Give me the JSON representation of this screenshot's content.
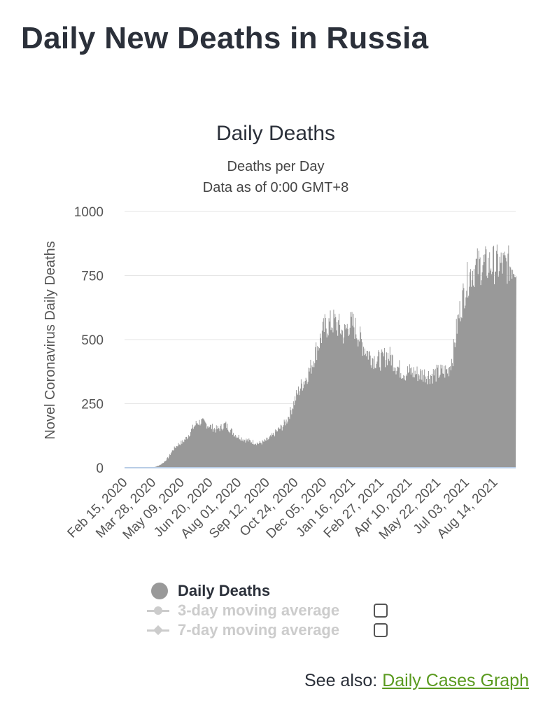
{
  "page": {
    "title": "Daily New Deaths in Russia"
  },
  "chart_data": {
    "type": "area",
    "title": "Daily Deaths",
    "subtitle_lines": [
      "Deaths per Day",
      "Data as of 0:00 GMT+8"
    ],
    "ylabel": "Novel Coronavirus Daily Deaths",
    "xlabel": "",
    "ylim": [
      0,
      1000
    ],
    "yticks": [
      0,
      250,
      500,
      750,
      1000
    ],
    "grid": true,
    "x_start": "2020-02-15",
    "x_end": "2021-09-14",
    "x_ticks": [
      "Feb 15, 2020",
      "Mar 28, 2020",
      "May 09, 2020",
      "Jun 20, 2020",
      "Aug 01, 2020",
      "Sep 12, 2020",
      "Oct 24, 2020",
      "Dec 05, 2020",
      "Jan 16, 2021",
      "Feb 27, 2021",
      "Apr 10, 2021",
      "May 22, 2021",
      "Jul 03, 2021",
      "Aug 14, 2021"
    ],
    "color": "#999999",
    "series": [
      {
        "name": "Daily Deaths",
        "points": [
          [
            "2020-02-15",
            0
          ],
          [
            "2020-03-25",
            0
          ],
          [
            "2020-03-30",
            3
          ],
          [
            "2020-04-05",
            8
          ],
          [
            "2020-04-12",
            20
          ],
          [
            "2020-04-19",
            40
          ],
          [
            "2020-04-26",
            70
          ],
          [
            "2020-05-03",
            90
          ],
          [
            "2020-05-10",
            100
          ],
          [
            "2020-05-17",
            120
          ],
          [
            "2020-05-24",
            150
          ],
          [
            "2020-05-31",
            175
          ],
          [
            "2020-06-07",
            180
          ],
          [
            "2020-06-14",
            170
          ],
          [
            "2020-06-21",
            160
          ],
          [
            "2020-06-28",
            150
          ],
          [
            "2020-07-05",
            155
          ],
          [
            "2020-07-12",
            170
          ],
          [
            "2020-07-19",
            150
          ],
          [
            "2020-07-26",
            130
          ],
          [
            "2020-08-02",
            120
          ],
          [
            "2020-08-09",
            110
          ],
          [
            "2020-08-16",
            105
          ],
          [
            "2020-08-23",
            100
          ],
          [
            "2020-08-30",
            95
          ],
          [
            "2020-09-06",
            100
          ],
          [
            "2020-09-13",
            110
          ],
          [
            "2020-09-20",
            125
          ],
          [
            "2020-09-27",
            145
          ],
          [
            "2020-10-04",
            160
          ],
          [
            "2020-10-11",
            185
          ],
          [
            "2020-10-18",
            230
          ],
          [
            "2020-10-25",
            280
          ],
          [
            "2020-11-01",
            320
          ],
          [
            "2020-11-08",
            350
          ],
          [
            "2020-11-15",
            390
          ],
          [
            "2020-11-22",
            450
          ],
          [
            "2020-11-29",
            500
          ],
          [
            "2020-12-06",
            550
          ],
          [
            "2020-12-13",
            560
          ],
          [
            "2020-12-20",
            570
          ],
          [
            "2020-12-27",
            550
          ],
          [
            "2021-01-03",
            520
          ],
          [
            "2021-01-10",
            560
          ],
          [
            "2021-01-17",
            560
          ],
          [
            "2021-01-24",
            520
          ],
          [
            "2021-01-31",
            480
          ],
          [
            "2021-02-07",
            450
          ],
          [
            "2021-02-14",
            430
          ],
          [
            "2021-02-21",
            420
          ],
          [
            "2021-02-28",
            420
          ],
          [
            "2021-03-07",
            440
          ],
          [
            "2021-03-14",
            430
          ],
          [
            "2021-03-21",
            400
          ],
          [
            "2021-03-28",
            380
          ],
          [
            "2021-04-04",
            370
          ],
          [
            "2021-04-11",
            375
          ],
          [
            "2021-04-18",
            370
          ],
          [
            "2021-04-25",
            365
          ],
          [
            "2021-05-02",
            365
          ],
          [
            "2021-05-09",
            360
          ],
          [
            "2021-05-16",
            365
          ],
          [
            "2021-05-23",
            370
          ],
          [
            "2021-05-30",
            375
          ],
          [
            "2021-06-06",
            380
          ],
          [
            "2021-06-13",
            440
          ],
          [
            "2021-06-20",
            570
          ],
          [
            "2021-06-27",
            660
          ],
          [
            "2021-07-04",
            730
          ],
          [
            "2021-07-11",
            770
          ],
          [
            "2021-07-18",
            785
          ],
          [
            "2021-07-25",
            790
          ],
          [
            "2021-08-01",
            790
          ],
          [
            "2021-08-08",
            795
          ],
          [
            "2021-08-15",
            795
          ],
          [
            "2021-08-22",
            790
          ],
          [
            "2021-08-29",
            790
          ],
          [
            "2021-09-05",
            790
          ],
          [
            "2021-09-14",
            800
          ]
        ]
      }
    ]
  },
  "legend": {
    "items": [
      {
        "label": "Daily Deaths",
        "active": true
      },
      {
        "label": "3-day moving average",
        "active": false
      },
      {
        "label": "7-day moving average",
        "active": false
      }
    ]
  },
  "see_also": {
    "prefix": "See also:",
    "link_label": "Daily Cases Graph"
  }
}
